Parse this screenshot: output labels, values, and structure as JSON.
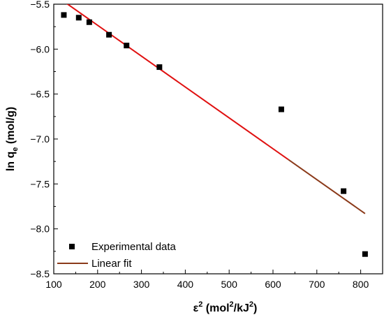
{
  "chart_data": {
    "type": "scatter",
    "xlabel": {
      "base": "ε",
      "sup": "2",
      "unit_pre": " (mol",
      "unit_sup1": "2",
      "unit_mid": "/kJ",
      "unit_sup2": "2",
      "unit_post": ")"
    },
    "ylabel": {
      "pre": "ln q",
      "sub": "e",
      "post": " (mol/g)"
    },
    "xlim": [
      100,
      850
    ],
    "ylim": [
      -8.5,
      -5.5
    ],
    "x_ticks": [
      100,
      200,
      300,
      400,
      500,
      600,
      700,
      800
    ],
    "y_ticks": [
      -5.5,
      -6.0,
      -6.5,
      -7.0,
      -7.5,
      -8.0,
      -8.5
    ],
    "y_tick_labels": [
      "−5.5",
      "−6.0",
      "−6.5",
      "−7.0",
      "−7.5",
      "−8.0",
      "−8.5"
    ],
    "legend_position": "bottom-left",
    "series": [
      {
        "name": "Experimental data",
        "kind": "scatter",
        "marker": "square",
        "color": "#000000",
        "x": [
          123,
          157,
          181,
          226,
          266,
          341,
          619,
          761,
          810
        ],
        "y": [
          -5.62,
          -5.65,
          -5.7,
          -5.84,
          -5.96,
          -6.2,
          -6.67,
          -7.58,
          -8.28
        ]
      },
      {
        "name": "Linear fit",
        "kind": "line",
        "color": "#e01010",
        "legend_color": "#8b3a1a",
        "segment_colors": [
          "#e01010",
          "#8b3a1a"
        ],
        "x": [
          123,
          810
        ],
        "y": [
          -5.47,
          -7.83
        ]
      }
    ]
  }
}
